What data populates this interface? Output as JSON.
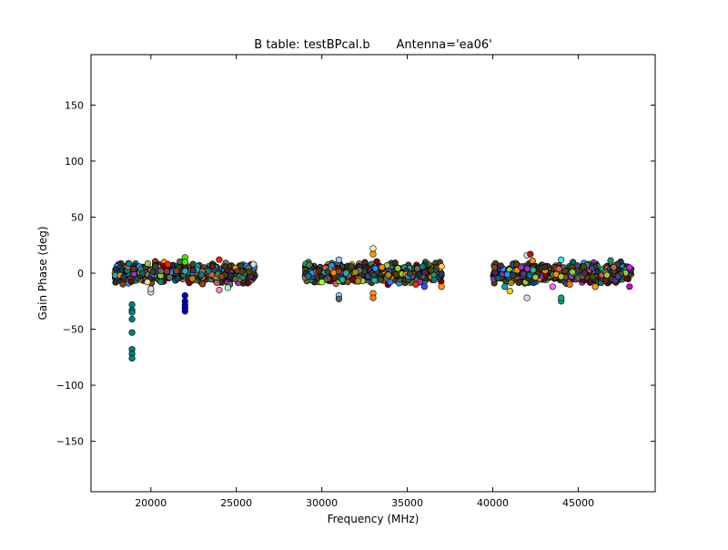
{
  "chart_data": {
    "type": "scatter",
    "title": "B table: testBPcal.b       Antenna='ea06'",
    "xlabel": "Frequency (MHz)",
    "ylabel": "Gain Phase (deg)",
    "xlim": [
      16500,
      49500
    ],
    "ylim": [
      -195,
      195
    ],
    "xticks": [
      20000,
      25000,
      30000,
      35000,
      40000,
      45000
    ],
    "xtick_labels": [
      "20000",
      "25000",
      "30000",
      "35000",
      "40000",
      "45000"
    ],
    "yticks": [
      150,
      100,
      50,
      0,
      -50,
      -100,
      -150
    ],
    "ytick_labels": [
      "150",
      "100",
      "50",
      "0",
      "−50",
      "−100",
      "−150"
    ],
    "grid": false,
    "legend": "none",
    "band_groups": [
      {
        "x_range": [
          17900,
          26100
        ],
        "phase_range": [
          -12,
          12
        ]
      },
      {
        "x_range": [
          29000,
          37000
        ],
        "phase_range": [
          -12,
          12
        ]
      },
      {
        "x_range": [
          40000,
          48100
        ],
        "phase_range": [
          -12,
          12
        ]
      }
    ],
    "notable_points": [
      {
        "x": 18900,
        "y": -28,
        "color": "#008080"
      },
      {
        "x": 18900,
        "y": -33,
        "color": "#008080"
      },
      {
        "x": 18900,
        "y": -35,
        "color": "#008080"
      },
      {
        "x": 18900,
        "y": -41,
        "color": "#008080"
      },
      {
        "x": 18900,
        "y": -53,
        "color": "#008080"
      },
      {
        "x": 18900,
        "y": -68,
        "color": "#008080"
      },
      {
        "x": 18900,
        "y": -72,
        "color": "#008080"
      },
      {
        "x": 18900,
        "y": -76,
        "color": "#008080"
      },
      {
        "x": 22000,
        "y": -20,
        "color": "#0000cc"
      },
      {
        "x": 22000,
        "y": -25,
        "color": "#0000cc"
      },
      {
        "x": 22000,
        "y": -28,
        "color": "#0000cc"
      },
      {
        "x": 22000,
        "y": -31,
        "color": "#0000cc"
      },
      {
        "x": 22000,
        "y": -34,
        "color": "#0000cc"
      },
      {
        "x": 22000,
        "y": 14,
        "color": "#44ee00"
      },
      {
        "x": 22000,
        "y": 10,
        "color": "#44ee00"
      },
      {
        "x": 20000,
        "y": -17,
        "color": "#dddddd"
      },
      {
        "x": 20000,
        "y": -14,
        "color": "#dddddd"
      },
      {
        "x": 19800,
        "y": -8,
        "color": "#eedd99"
      },
      {
        "x": 21000,
        "y": 8,
        "color": "#ff2200"
      },
      {
        "x": 24000,
        "y": 12,
        "color": "#ff2200"
      },
      {
        "x": 24000,
        "y": -15,
        "color": "#ff88cc"
      },
      {
        "x": 24500,
        "y": -13,
        "color": "#aaffaa"
      },
      {
        "x": 26000,
        "y": 8,
        "color": "#dddddd"
      },
      {
        "x": 31000,
        "y": -20,
        "color": "#99ccff"
      },
      {
        "x": 31000,
        "y": -23,
        "color": "#556677"
      },
      {
        "x": 31000,
        "y": 12,
        "color": "#99ccff"
      },
      {
        "x": 33000,
        "y": 22,
        "color": "#ffeeaa"
      },
      {
        "x": 33000,
        "y": 17,
        "color": "#ff9900"
      },
      {
        "x": 33000,
        "y": -18,
        "color": "#ff9900"
      },
      {
        "x": 33000,
        "y": -22,
        "color": "#ff7700"
      },
      {
        "x": 30000,
        "y": -8,
        "color": "#aaff44"
      },
      {
        "x": 34000,
        "y": -8,
        "color": "#3377ff"
      },
      {
        "x": 35500,
        "y": -10,
        "color": "#ff2200"
      },
      {
        "x": 36000,
        "y": -12,
        "color": "#2255ff"
      },
      {
        "x": 37000,
        "y": -12,
        "color": "#ff9900"
      },
      {
        "x": 37000,
        "y": 6,
        "color": "#ffcc66"
      },
      {
        "x": 40700,
        "y": -12,
        "color": "#00aaaa"
      },
      {
        "x": 41000,
        "y": -16,
        "color": "#ffcc00"
      },
      {
        "x": 42000,
        "y": -22,
        "color": "#dddddd"
      },
      {
        "x": 42000,
        "y": 16,
        "color": "#dddddd"
      },
      {
        "x": 42200,
        "y": 17,
        "color": "#aa2200"
      },
      {
        "x": 43500,
        "y": -12,
        "color": "#ff66ff"
      },
      {
        "x": 44000,
        "y": 12,
        "color": "#33eeff"
      },
      {
        "x": 44000,
        "y": -25,
        "color": "#00aa66"
      },
      {
        "x": 44000,
        "y": -22,
        "color": "#00aa66"
      },
      {
        "x": 44500,
        "y": -10,
        "color": "#ff7700"
      },
      {
        "x": 46000,
        "y": -12,
        "color": "#ff9900"
      },
      {
        "x": 48000,
        "y": 5,
        "color": "#ff00ff"
      },
      {
        "x": 48000,
        "y": -12,
        "color": "#cc00cc"
      }
    ],
    "series_colors": [
      "#2f4f2f",
      "#3b2f2f",
      "#1f3f5f",
      "#006666",
      "#5a3a1a",
      "#4a4a00",
      "#203040",
      "#662200",
      "#334433",
      "#552255",
      "#8b4513",
      "#556b2f",
      "#2e8b57",
      "#483d8b",
      "#800000",
      "#008080",
      "#b8860b",
      "#696969",
      "#1e90ff",
      "#ff8c00",
      "#9acd32",
      "#cd5c5c",
      "#9932cc",
      "#20b2aa"
    ]
  }
}
